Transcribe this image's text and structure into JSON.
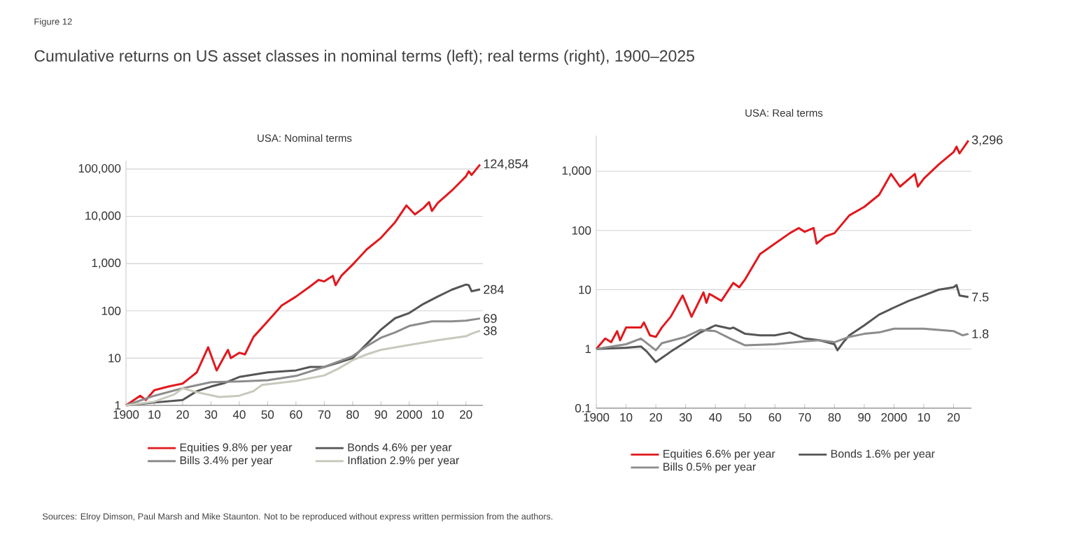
{
  "chart_data": [
    {
      "type": "line",
      "title": "USA: Nominal terms",
      "log": true,
      "grid": "y",
      "legend": "bottom",
      "annotations": [
        "Figure 12",
        "Cumulative returns on US asset classes in nominal terms (left); real terms (right), 1900–2025",
        "Sources: Elroy Dimson, Paul Marsh and Mike Staunton. Not to be reproduced without express written permission from the authors."
      ],
      "xlim": [
        1900,
        2026
      ],
      "ylim": [
        1,
        150000
      ],
      "xticks": [
        1900,
        {
          "value": 1910,
          "label": "10"
        },
        {
          "value": 1920,
          "label": "20"
        },
        {
          "value": 1930,
          "label": "30"
        },
        {
          "value": 1940,
          "label": "40"
        },
        {
          "value": 1950,
          "label": "50"
        },
        {
          "value": 1960,
          "label": "60"
        },
        {
          "value": 1970,
          "label": "70"
        },
        {
          "value": 1980,
          "label": "80"
        },
        {
          "value": 1990,
          "label": "90"
        },
        2000,
        {
          "value": 2010,
          "label": "10"
        },
        {
          "value": 2020,
          "label": "20"
        }
      ],
      "yticks": [
        1,
        10,
        100,
        {
          "value": 1000,
          "label": "1,000"
        },
        {
          "value": 10000,
          "label": "10,000"
        },
        {
          "value": 100000,
          "label": "100,000"
        }
      ],
      "series": [
        {
          "name": "Equities 9.8% per year",
          "color": "#e0191e",
          "x": [
            1900,
            1905,
            1907,
            1910,
            1915,
            1920,
            1922,
            1925,
            1929,
            1932,
            1936,
            1937,
            1940,
            1942,
            1945,
            1950,
            1955,
            1960,
            1965,
            1968,
            1970,
            1973,
            1974,
            1976,
            1980,
            1985,
            1990,
            1995,
            1999,
            2002,
            2005,
            2007,
            2008,
            2010,
            2015,
            2020,
            2021,
            2022,
            2025
          ],
          "values": [
            1,
            1.6,
            1.3,
            2.1,
            2.5,
            2.9,
            3.6,
            5,
            17,
            5.5,
            15,
            10,
            13,
            12,
            28,
            60,
            130,
            200,
            330,
            450,
            420,
            550,
            350,
            550,
            950,
            2000,
            3500,
            7500,
            17000,
            11000,
            15000,
            20000,
            13000,
            19000,
            35000,
            70000,
            90000,
            75000,
            124854
          ],
          "value_labels": [
            null,
            null,
            null,
            null,
            null,
            null,
            null,
            null,
            null,
            null,
            null,
            null,
            null,
            null,
            null,
            null,
            null,
            null,
            null,
            null,
            null,
            null,
            null,
            null,
            null,
            null,
            null,
            null,
            null,
            null,
            null,
            null,
            null,
            null,
            null,
            null,
            null,
            null,
            "124,854"
          ]
        },
        {
          "name": "Bonds 4.6% per year",
          "color": "#555555",
          "x": [
            1900,
            1910,
            1920,
            1925,
            1930,
            1935,
            1940,
            1950,
            1960,
            1965,
            1970,
            1975,
            1980,
            1985,
            1990,
            1995,
            2000,
            2005,
            2010,
            2015,
            2020,
            2021,
            2022,
            2025
          ],
          "values": [
            1,
            1.15,
            1.3,
            2,
            2.5,
            3,
            4,
            5,
            5.5,
            6.5,
            6.5,
            8,
            10,
            20,
            40,
            70,
            90,
            140,
            200,
            280,
            360,
            350,
            260,
            284
          ],
          "value_labels": [
            null,
            null,
            null,
            null,
            null,
            null,
            null,
            null,
            null,
            null,
            null,
            null,
            null,
            null,
            null,
            null,
            null,
            null,
            null,
            null,
            null,
            null,
            null,
            "284"
          ]
        },
        {
          "name": "Bills 3.4% per year",
          "color": "#8c8c8c",
          "x": [
            1900,
            1910,
            1920,
            1930,
            1940,
            1950,
            1960,
            1970,
            1980,
            1985,
            1990,
            1995,
            2000,
            2005,
            2008,
            2015,
            2020,
            2025
          ],
          "values": [
            1,
            1.6,
            2.3,
            3.1,
            3.2,
            3.4,
            4.2,
            6.5,
            11,
            18,
            27,
            35,
            48,
            55,
            60,
            60,
            62,
            69
          ],
          "value_labels": [
            null,
            null,
            null,
            null,
            null,
            null,
            null,
            null,
            null,
            null,
            null,
            null,
            null,
            null,
            null,
            null,
            null,
            "69"
          ]
        },
        {
          "name": "Inflation 2.9% per year",
          "color": "#c8c8bc",
          "x": [
            1900,
            1910,
            1917,
            1920,
            1925,
            1933,
            1940,
            1945,
            1948,
            1950,
            1960,
            1970,
            1975,
            1980,
            1985,
            1990,
            2000,
            2010,
            2020,
            2022,
            2025
          ],
          "values": [
            1,
            1.2,
            1.7,
            2.3,
            1.9,
            1.5,
            1.6,
            2,
            2.7,
            2.8,
            3.3,
            4.3,
            6,
            9,
            12,
            15,
            19,
            24,
            29,
            33,
            38
          ],
          "value_labels": [
            null,
            null,
            null,
            null,
            null,
            null,
            null,
            null,
            null,
            null,
            null,
            null,
            null,
            null,
            null,
            null,
            null,
            null,
            null,
            null,
            "38"
          ]
        }
      ]
    },
    {
      "type": "line",
      "title": "USA: Real terms",
      "log": true,
      "grid": "y",
      "legend": "bottom",
      "xlim": [
        1900,
        2026
      ],
      "ylim": [
        0.1,
        4000
      ],
      "xticks": [
        1900,
        {
          "value": 1910,
          "label": "10"
        },
        {
          "value": 1920,
          "label": "20"
        },
        {
          "value": 1930,
          "label": "30"
        },
        {
          "value": 1940,
          "label": "40"
        },
        {
          "value": 1950,
          "label": "50"
        },
        {
          "value": 1960,
          "label": "60"
        },
        {
          "value": 1970,
          "label": "70"
        },
        {
          "value": 1980,
          "label": "80"
        },
        {
          "value": 1990,
          "label": "90"
        },
        2000,
        {
          "value": 2010,
          "label": "10"
        },
        {
          "value": 2020,
          "label": "20"
        }
      ],
      "yticks": [
        0.1,
        1,
        10,
        100,
        {
          "value": 1000,
          "label": "1,000"
        }
      ],
      "series": [
        {
          "name": "Equities 6.6% per year",
          "color": "#e0191e",
          "x": [
            1900,
            1903,
            1905,
            1907,
            1908,
            1910,
            1915,
            1916,
            1918,
            1920,
            1922,
            1925,
            1929,
            1932,
            1936,
            1937,
            1938,
            1942,
            1946,
            1948,
            1950,
            1955,
            1960,
            1965,
            1968,
            1970,
            1973,
            1974,
            1977,
            1980,
            1985,
            1990,
            1995,
            1999,
            2002,
            2007,
            2008,
            2010,
            2015,
            2020,
            2021,
            2022,
            2025
          ],
          "values": [
            1,
            1.5,
            1.3,
            2,
            1.4,
            2.3,
            2.3,
            2.8,
            1.7,
            1.6,
            2.3,
            3.5,
            8,
            3.5,
            9,
            6,
            8.5,
            6.5,
            13,
            11,
            15,
            40,
            60,
            90,
            110,
            95,
            110,
            60,
            80,
            90,
            180,
            250,
            400,
            900,
            550,
            900,
            550,
            750,
            1300,
            2100,
            2600,
            2000,
            3296
          ],
          "value_labels": [
            null,
            null,
            null,
            null,
            null,
            null,
            null,
            null,
            null,
            null,
            null,
            null,
            null,
            null,
            null,
            null,
            null,
            null,
            null,
            null,
            null,
            null,
            null,
            null,
            null,
            null,
            null,
            null,
            null,
            null,
            null,
            null,
            null,
            null,
            null,
            null,
            null,
            null,
            null,
            null,
            null,
            null,
            "3,296"
          ]
        },
        {
          "name": "Bonds 1.6% per year",
          "color": "#555555",
          "x": [
            1900,
            1910,
            1915,
            1917,
            1920,
            1925,
            1930,
            1935,
            1940,
            1945,
            1946,
            1950,
            1955,
            1960,
            1965,
            1970,
            1975,
            1980,
            1981,
            1983,
            1985,
            1990,
            1995,
            2000,
            2005,
            2010,
            2015,
            2020,
            2021,
            2022,
            2025
          ],
          "values": [
            1,
            1.05,
            1.1,
            0.9,
            0.6,
            0.9,
            1.3,
            1.9,
            2.5,
            2.2,
            2.3,
            1.8,
            1.7,
            1.7,
            1.9,
            1.5,
            1.4,
            1.2,
            0.95,
            1.3,
            1.7,
            2.5,
            3.8,
            5,
            6.5,
            8,
            10,
            11,
            12,
            8,
            7.5
          ],
          "value_labels": [
            null,
            null,
            null,
            null,
            null,
            null,
            null,
            null,
            null,
            null,
            null,
            null,
            null,
            null,
            null,
            null,
            null,
            null,
            null,
            null,
            null,
            null,
            null,
            null,
            null,
            null,
            null,
            null,
            null,
            null,
            "7.5"
          ]
        },
        {
          "name": "Bills 0.5% per year",
          "color": "#8c8c8c",
          "x": [
            1900,
            1910,
            1915,
            1920,
            1922,
            1930,
            1935,
            1940,
            1945,
            1950,
            1960,
            1970,
            1975,
            1980,
            1985,
            1990,
            1995,
            2000,
            2005,
            2010,
            2015,
            2020,
            2023,
            2025
          ],
          "values": [
            1,
            1.2,
            1.5,
            0.95,
            1.25,
            1.6,
            2.1,
            2,
            1.5,
            1.15,
            1.2,
            1.35,
            1.4,
            1.3,
            1.6,
            1.8,
            1.9,
            2.2,
            2.2,
            2.2,
            2.1,
            2,
            1.7,
            1.8
          ],
          "value_labels": [
            null,
            null,
            null,
            null,
            null,
            null,
            null,
            null,
            null,
            null,
            null,
            null,
            null,
            null,
            null,
            null,
            null,
            null,
            null,
            null,
            null,
            null,
            null,
            "1.8"
          ]
        }
      ]
    }
  ]
}
